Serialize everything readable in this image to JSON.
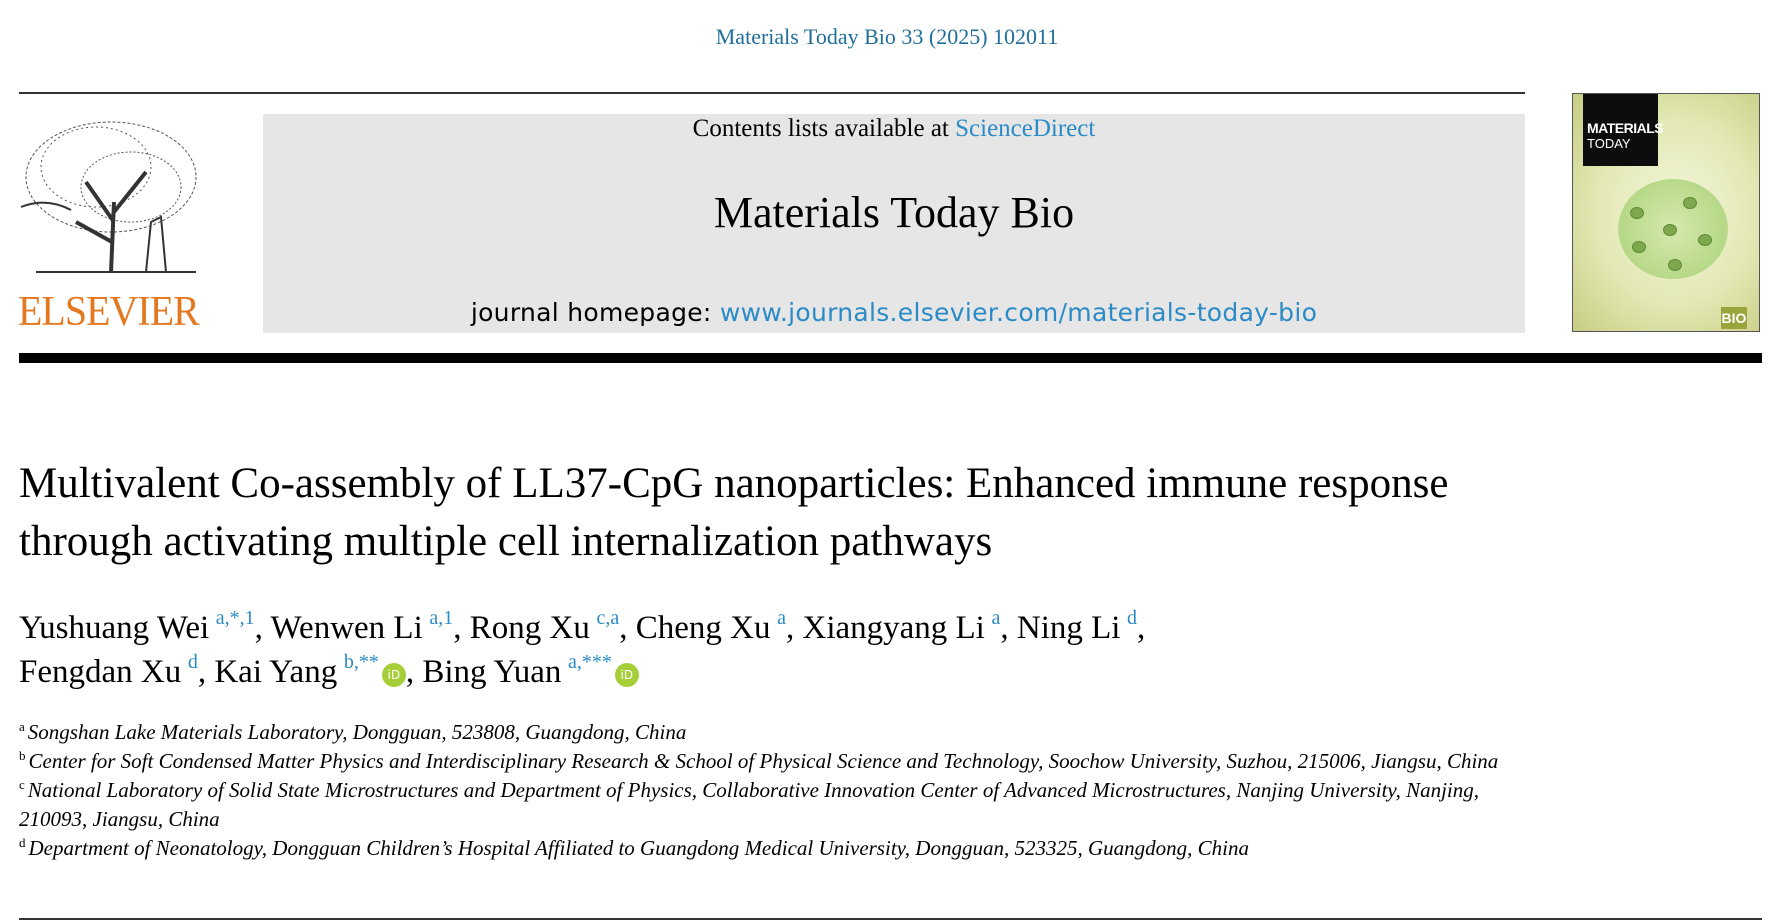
{
  "header": {
    "journal_ref": "Materials Today Bio 33 (2025) 102011",
    "contents_prefix": "Contents lists available at ",
    "contents_link": "ScienceDirect",
    "journal_title": "Materials Today Bio",
    "homepage_prefix": "journal homepage: ",
    "homepage_link": "www.journals.elsevier.com/materials-today-bio",
    "publisher_logo": "ELSEVIER",
    "cover": {
      "line1": "MATERIALS",
      "line2": "TODAY",
      "badge": "BIO"
    }
  },
  "article": {
    "title": "Multivalent Co-assembly of LL37-CpG nanoparticles: Enhanced immune response through activating multiple cell internalization pathways",
    "authors": [
      {
        "name": "Yushuang Wei",
        "sup": "a,*,1",
        "orcid": false
      },
      {
        "name": "Wenwen Li",
        "sup": "a,1",
        "orcid": false
      },
      {
        "name": "Rong Xu",
        "sup": "c,a",
        "orcid": false
      },
      {
        "name": "Cheng Xu",
        "sup": "a",
        "orcid": false
      },
      {
        "name": "Xiangyang Li",
        "sup": "a",
        "orcid": false
      },
      {
        "name": "Ning Li",
        "sup": "d",
        "orcid": false
      },
      {
        "name": "Fengdan Xu",
        "sup": "d",
        "orcid": false
      },
      {
        "name": "Kai Yang",
        "sup": "b,**",
        "orcid": true
      },
      {
        "name": "Bing Yuan",
        "sup": "a,***",
        "orcid": true
      }
    ],
    "affiliations": [
      {
        "key": "a",
        "text": "Songshan Lake Materials Laboratory, Dongguan, 523808, Guangdong, China"
      },
      {
        "key": "b",
        "text": "Center for Soft Condensed Matter Physics and Interdisciplinary Research & School of Physical Science and Technology, Soochow University, Suzhou, 215006, Jiangsu, China"
      },
      {
        "key": "c",
        "text": "National Laboratory of Solid State Microstructures and Department of Physics, Collaborative Innovation Center of Advanced Microstructures, Nanjing University, Nanjing, 210093, Jiangsu, China"
      },
      {
        "key": "d",
        "text": "Department of Neonatology, Dongguan Children’s Hospital Affiliated to Guangdong Medical University, Dongguan, 523325, Guangdong, China"
      }
    ]
  },
  "colors": {
    "link": "#2a8bc6",
    "journal_ref": "#1f6e9c",
    "elsevier": "#e47821",
    "banner": "#e6e6e6",
    "orcid": "#a6ce39"
  }
}
